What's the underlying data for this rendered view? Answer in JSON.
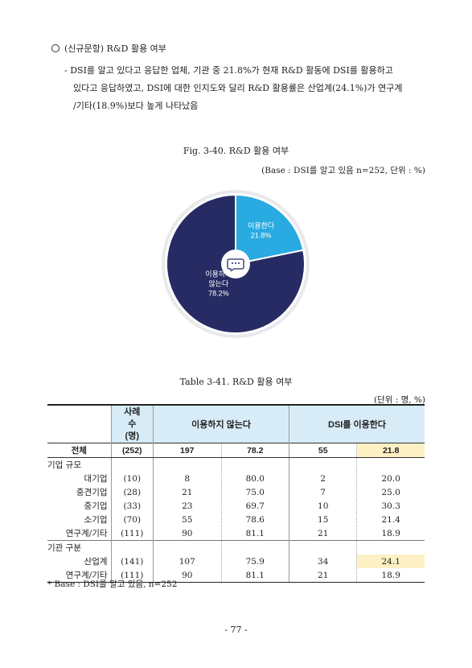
{
  "section": {
    "heading": "(신규문항) R&D 활용 여부",
    "paragraph_line1": "- DSI를 알고 있다고 응답한 업체, 기관 중 21.8%가 현재 R&D 활동에 DSI를 활용하고",
    "paragraph_line2": "있다고 응답하였고, DSI에 대한 인지도와 달리 R&D 활용률은 산업계(24.1%)가 연구계",
    "paragraph_line3": "/기타(18.9%)보다 높게 나타났음"
  },
  "figure": {
    "title": "Fig. 3-40. R&D 활용 여부",
    "base_note": "(Base : DSI를 알고 있음 n=252, 단위 : %)"
  },
  "chart_data": {
    "type": "pie",
    "labels": [
      "이용한다",
      "이용하지 않는다"
    ],
    "values": [
      21.8,
      78.2
    ],
    "slice_label_lines": [
      [
        "이용한다",
        "21.8%"
      ],
      [
        "이용하지",
        "않는다",
        "78.2%"
      ]
    ],
    "colors": [
      "#29aae1",
      "#262b63"
    ]
  },
  "table": {
    "title": "Table 3-41. R&D 활용 여부",
    "unit": "(단위 : 명, %)",
    "header_n": "사례수 (명)",
    "header_no": "이용하지 않는다",
    "header_yes": "DSI를 이용한다",
    "total": {
      "label": "전체",
      "n": "(252)",
      "no_n": "197",
      "no_pct": "78.2",
      "yes_n": "55",
      "yes_pct": "21.8"
    },
    "group1": {
      "label": "기업 규모",
      "rows": [
        {
          "label": "대기업",
          "n": "(10)",
          "no_n": "8",
          "no_pct": "80.0",
          "yes_n": "2",
          "yes_pct": "20.0"
        },
        {
          "label": "중견기업",
          "n": "(28)",
          "no_n": "21",
          "no_pct": "75.0",
          "yes_n": "7",
          "yes_pct": "25.0"
        },
        {
          "label": "중기업",
          "n": "(33)",
          "no_n": "23",
          "no_pct": "69.7",
          "yes_n": "10",
          "yes_pct": "30.3"
        },
        {
          "label": "소기업",
          "n": "(70)",
          "no_n": "55",
          "no_pct": "78.6",
          "yes_n": "15",
          "yes_pct": "21.4"
        },
        {
          "label": "연구계/기타",
          "n": "(111)",
          "no_n": "90",
          "no_pct": "81.1",
          "yes_n": "21",
          "yes_pct": "18.9"
        }
      ]
    },
    "group2": {
      "label": "기관 구분",
      "rows": [
        {
          "label": "산업계",
          "n": "(141)",
          "no_n": "107",
          "no_pct": "75.9",
          "yes_n": "34",
          "yes_pct": "24.1"
        },
        {
          "label": "연구계/기타",
          "n": "(111)",
          "no_n": "90",
          "no_pct": "81.1",
          "yes_n": "21",
          "yes_pct": "18.9"
        }
      ]
    },
    "note": "* Base : DSI를 알고 있음, n=252"
  },
  "page_number": "- 77 -"
}
